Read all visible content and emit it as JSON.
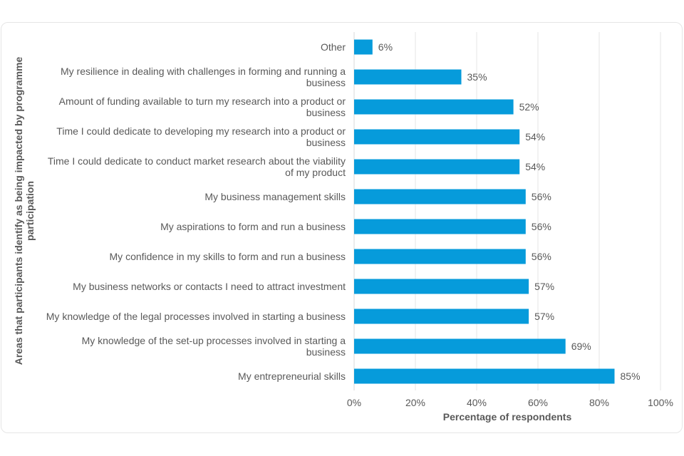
{
  "chart_data": {
    "type": "bar",
    "orientation": "horizontal",
    "categories": [
      "Other",
      "My resilience in dealing with challenges in forming and running a business",
      "Amount of funding available to turn my research into a product or business",
      "Time I could dedicate to developing my research into a product or business",
      "Time I could dedicate to conduct market research about the viability of my product",
      "My business management skills",
      "My aspirations to form and run a business",
      "My confidence in my skills to form and run a business",
      "My business networks or contacts I need to attract investment",
      "My knowledge of the legal processes involved in starting a business",
      "My knowledge of the set-up processes involved in starting a business",
      "My entrepreneurial skills"
    ],
    "category_lines": [
      [
        "Other"
      ],
      [
        "My resilience in dealing with challenges in forming and running a",
        "business"
      ],
      [
        "Amount of funding available to turn my research into a product or",
        "business"
      ],
      [
        "Time I could dedicate to developing my research into a product or",
        "business"
      ],
      [
        "Time I could dedicate to conduct market research about the viability",
        "of my product"
      ],
      [
        "My business management skills"
      ],
      [
        "My aspirations to form and run a business"
      ],
      [
        "My confidence in my skills to form and run a business"
      ],
      [
        "My business networks or contacts I need to attract investment"
      ],
      [
        "My knowledge of the legal processes involved in starting a business"
      ],
      [
        "My knowledge of the set-up processes involved in starting a",
        "business"
      ],
      [
        "My entrepreneurial skills"
      ]
    ],
    "values": [
      6,
      35,
      52,
      54,
      54,
      56,
      56,
      56,
      57,
      57,
      69,
      85
    ],
    "value_labels": [
      "6%",
      "35%",
      "52%",
      "54%",
      "54%",
      "56%",
      "56%",
      "56%",
      "57%",
      "57%",
      "69%",
      "85%"
    ],
    "xlim": [
      0,
      100
    ],
    "xticks": [
      0,
      20,
      40,
      60,
      80,
      100
    ],
    "xtick_labels": [
      "0%",
      "20%",
      "40%",
      "60%",
      "80%",
      "100%"
    ],
    "xlabel": "Percentage of respondents",
    "ylabel_lines": [
      "Areas that participants identify as being impacted by programme",
      "participation"
    ],
    "grid": true,
    "bar_color": "#069BDB",
    "grid_color": "#e6e6e6",
    "text_color": "#595959"
  }
}
